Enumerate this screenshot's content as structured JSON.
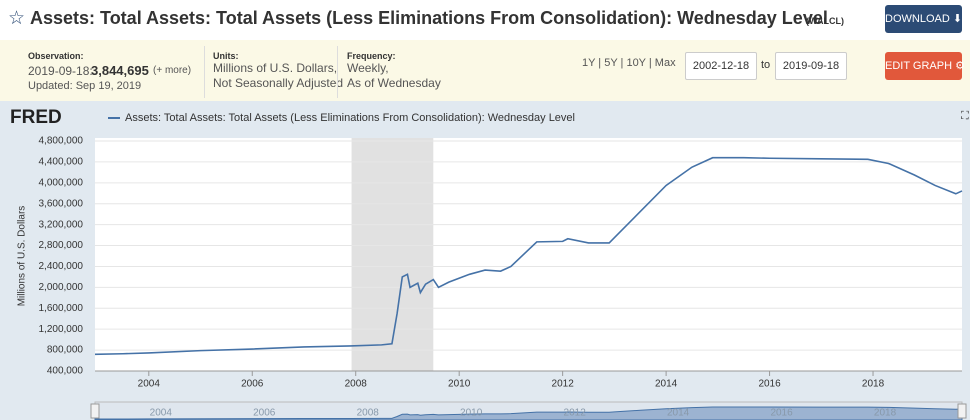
{
  "header": {
    "title": "Assets: Total Assets: Total Assets (Less Eliminations From Consolidation): Wednesday Level",
    "series_id": "(WALCL)",
    "download": "DOWNLOAD",
    "edit_graph": "EDIT GRAPH"
  },
  "meta": {
    "observation_label": "Observation:",
    "observation_date": "2019-09-18:",
    "observation_value": "3,844,695",
    "more": "(+ more)",
    "updated": "Updated: Sep 19, 2019",
    "units_label": "Units:",
    "units_1": "Millions of U.S. Dollars,",
    "units_2": "Not Seasonally Adjusted",
    "frequency_label": "Frequency:",
    "frequency_1": "Weekly,",
    "frequency_2": "As of Wednesday",
    "ranges": "1Y | 5Y | 10Y | Max",
    "start_date": "2002-12-18",
    "to": "to",
    "end_date": "2019-09-18"
  },
  "chart_data": {
    "type": "line",
    "logo": "FRED",
    "ylabel": "Millions of U.S. Dollars",
    "xlim": [
      2002.96,
      2019.72
    ],
    "xticks": [
      2004,
      2006,
      2008,
      2010,
      2012,
      2014,
      2016,
      2018
    ],
    "ylim": [
      400000,
      4800000
    ],
    "yticks": [
      {
        "value": 400000,
        "label": "400,000"
      },
      {
        "value": 800000,
        "label": "800,000"
      },
      {
        "value": 1200000,
        "label": "1,200,000"
      },
      {
        "value": 1600000,
        "label": "1,600,000"
      },
      {
        "value": 2000000,
        "label": "2,000,000"
      },
      {
        "value": 2400000,
        "label": "2,400,000"
      },
      {
        "value": 2800000,
        "label": "2,800,000"
      },
      {
        "value": 3200000,
        "label": "3,200,000"
      },
      {
        "value": 3600000,
        "label": "3,600,000"
      },
      {
        "value": 4000000,
        "label": "4,000,000"
      },
      {
        "value": 4400000,
        "label": "4,400,000"
      },
      {
        "value": 4800000,
        "label": "4,800,000"
      }
    ],
    "grid": true,
    "recession": [
      2007.92,
      2009.5
    ],
    "x": [
      2002.96,
      2003.5,
      2004,
      2005,
      2006,
      2007,
      2007.9,
      2008.5,
      2008.7,
      2008.8,
      2008.9,
      2009.0,
      2009.05,
      2009.2,
      2009.25,
      2009.35,
      2009.5,
      2009.6,
      2009.8,
      2010.2,
      2010.5,
      2010.8,
      2011.0,
      2011.5,
      2012,
      2012.1,
      2012.5,
      2012.9,
      2013.0,
      2013.5,
      2014,
      2014.5,
      2014.9,
      2015.5,
      2016,
      2017,
      2017.9,
      2018.3,
      2018.8,
      2019.2,
      2019.6,
      2019.72
    ],
    "series": [
      {
        "name": "Assets: Total Assets: Total Assets (Less Eliminations From Consolidation): Wednesday Level",
        "color": "#4572a7",
        "values": [
          720000,
          730000,
          745000,
          790000,
          820000,
          860000,
          880000,
          900000,
          920000,
          1500000,
          2200000,
          2250000,
          2000000,
          2080000,
          1900000,
          2060000,
          2150000,
          2000000,
          2100000,
          2250000,
          2330000,
          2310000,
          2400000,
          2870000,
          2880000,
          2930000,
          2850000,
          2850000,
          2950000,
          3450000,
          3950000,
          4300000,
          4480000,
          4480000,
          4470000,
          4460000,
          4450000,
          4370000,
          4150000,
          3950000,
          3790000,
          3844695
        ]
      }
    ]
  }
}
